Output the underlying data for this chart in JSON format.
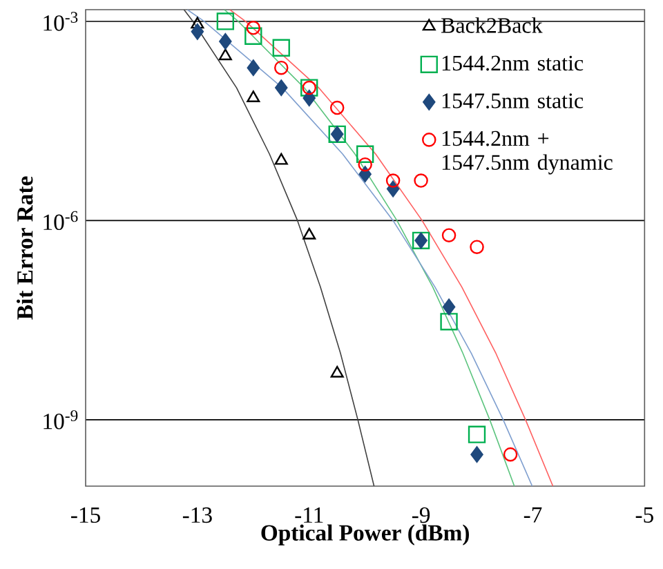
{
  "chart_data": {
    "type": "scatter",
    "xlabel": "Optical Power (dBm)",
    "ylabel": "Bit Error Rate",
    "xlim": [
      -15,
      -5
    ],
    "xticks": [
      -15,
      -13,
      -11,
      -9,
      -7,
      -5
    ],
    "ylim": [
      1e-10,
      0.0015
    ],
    "yticks": [
      {
        "value": 0.001,
        "label": "10$^{-3}$"
      },
      {
        "value": 1e-06,
        "label": "10$^{-6}$"
      },
      {
        "value": 1e-09,
        "label": "10$^{-9}$"
      }
    ],
    "log": "y",
    "grid": "y",
    "legend": "top right",
    "series": [
      {
        "name": "Back2Back",
        "color": "#000000",
        "marker": "triangle",
        "x": [
          -13,
          -12.5,
          -12,
          -11.5,
          -11,
          -10.5
        ],
        "values": [
          0.0009,
          0.0003,
          7e-05,
          8e-06,
          6e-07,
          5e-09
        ]
      },
      {
        "name": "1544.2nm static",
        "color": "#00b050",
        "marker": "square",
        "x": [
          -12.5,
          -12,
          -11.5,
          -11,
          -10.5,
          -10,
          -9,
          -8.5,
          -8
        ],
        "values": [
          0.001,
          0.0006,
          0.0004,
          0.0001,
          2e-05,
          1e-05,
          5e-07,
          3e-08,
          6e-10
        ]
      },
      {
        "name": "1547.5nm static",
        "color": "#1f497d",
        "marker": "diamond",
        "x": [
          -13,
          -12.5,
          -12,
          -11.5,
          -11,
          -10.5,
          -10,
          -9.5,
          -9,
          -8.5,
          -8
        ],
        "values": [
          0.0007,
          0.0005,
          0.0002,
          0.0001,
          7e-05,
          2e-05,
          5e-06,
          3e-06,
          5e-07,
          5e-08,
          3e-10
        ]
      },
      {
        "name": "1544.2nm + 1547.5nm dynamic",
        "color": "#ff0000",
        "marker": "circle",
        "x": [
          -12,
          -11.5,
          -11,
          -10.5,
          -10,
          -9.5,
          -9,
          -8.5,
          -8,
          -7.4
        ],
        "values": [
          0.0008,
          0.0002,
          0.0001,
          5e-05,
          7e-06,
          4e-06,
          4e-06,
          6e-07,
          4e-07,
          3e-10
        ]
      },
      {
        "type": "line",
        "color": "#404040",
        "marker": "none",
        "x": [
          -13.24,
          -13.08,
          -12.3,
          -11.71,
          -11.21,
          -10.8,
          -10.44,
          -10.13,
          -9.84
        ],
        "values": [
          0.0015,
          0.001,
          0.0001,
          1e-05,
          1e-06,
          1e-07,
          1e-08,
          1e-09,
          1e-10
        ]
      },
      {
        "type": "line",
        "color": "#5cc47e",
        "marker": "none",
        "x": [
          -12.52,
          -12.27,
          -11.09,
          -10.18,
          -9.43,
          -8.79,
          -8.25,
          -7.77,
          -7.33
        ],
        "values": [
          0.0015,
          0.001,
          0.0001,
          1e-05,
          1e-06,
          1e-07,
          1e-08,
          1e-09,
          1e-10
        ]
      },
      {
        "type": "line",
        "color": "#7f9fcf",
        "marker": "none",
        "x": [
          -13.18,
          -12.88,
          -11.48,
          -10.4,
          -9.5,
          -8.75,
          -8.1,
          -7.53,
          -7.01
        ],
        "values": [
          0.0015,
          0.001,
          0.0001,
          1e-05,
          1e-06,
          1e-07,
          1e-08,
          1e-09,
          1e-10
        ]
      },
      {
        "type": "line",
        "color": "#ff6060",
        "marker": "none",
        "x": [
          -12.42,
          -12.14,
          -10.83,
          -9.81,
          -8.98,
          -8.27,
          -7.66,
          -7.13,
          -6.64
        ],
        "values": [
          0.0015,
          0.001,
          0.0001,
          1e-05,
          1e-06,
          1e-07,
          1e-08,
          1e-09,
          1e-10
        ]
      }
    ]
  }
}
